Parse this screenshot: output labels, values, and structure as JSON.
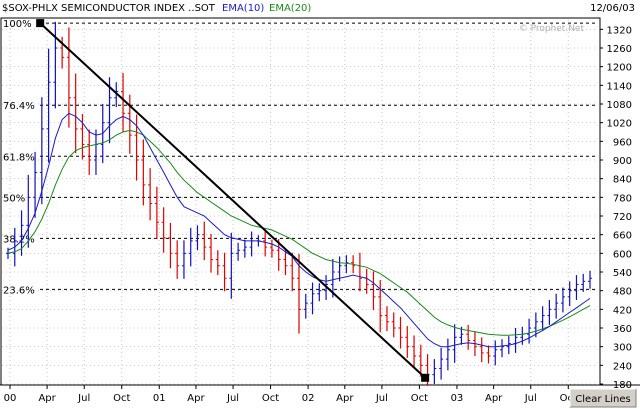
{
  "header": {
    "symbol_title": "$SOX-PHLX SEMICONDUCTOR INDEX ..SOT",
    "ema10_label": "EMA(10)",
    "ema20_label": "EMA(20)",
    "date": "12/06/03",
    "watermark": "© Prophet.Net"
  },
  "button": {
    "clear_lines": "Clear Lines"
  },
  "colors": {
    "background": "#ffffff",
    "grid": "#000000",
    "up_bar": "#1010c0",
    "down_bar": "#e00000",
    "ema10": "#1a1acc",
    "ema20": "#1a8a1a",
    "trendline": "#000000",
    "fib_line": "#000000"
  },
  "chart_data": {
    "type": "line",
    "title": "$SOX-PHLX SEMICONDUCTOR INDEX ..SOT",
    "x_tick_labels": [
      "00",
      "Apr",
      "Jul",
      "Oct",
      "01",
      "Apr",
      "Jul",
      "Oct",
      "02",
      "Apr",
      "Jul",
      "Oct",
      "03",
      "Apr",
      "Jul",
      "Oct"
    ],
    "y_tick_labels": [
      "180",
      "240",
      "300",
      "360",
      "420",
      "480",
      "540",
      "600",
      "660",
      "720",
      "780",
      "840",
      "900",
      "960",
      "1020",
      "1080",
      "1140",
      "1200",
      "1260",
      "1320"
    ],
    "ylim": [
      180,
      1350
    ],
    "y_scale": "linear",
    "date_range": [
      "2000-01",
      "2003-12"
    ],
    "fibonacci_levels": [
      {
        "label": "100%",
        "value": 1340
      },
      {
        "label": "76.4%",
        "value": 1076
      },
      {
        "label": "61.8%",
        "value": 912
      },
      {
        "label": "50%",
        "value": 780
      },
      {
        "label": "38.2%",
        "value": 648
      },
      {
        "label": "23.6%",
        "value": 484
      }
    ],
    "trendline": [
      {
        "date": "2000-03",
        "value": 1340
      },
      {
        "date": "2002-10",
        "value": 200
      }
    ],
    "closes": [
      600,
      640,
      690,
      780,
      860,
      1000,
      1150,
      1260,
      1230,
      1100,
      1000,
      950,
      900,
      950,
      1020,
      1100,
      1120,
      1050,
      980,
      900,
      820,
      760,
      700,
      650,
      600,
      560,
      600,
      640,
      660,
      620,
      580,
      560,
      520,
      600,
      610,
      620,
      640,
      640,
      620,
      610,
      580,
      560,
      520,
      420,
      440,
      470,
      480,
      500,
      540,
      560,
      570,
      560,
      520,
      500,
      460,
      400,
      380,
      360,
      330,
      300,
      270,
      240,
      210,
      230,
      260,
      290,
      330,
      340,
      320,
      300,
      280,
      270,
      290,
      300,
      310,
      330,
      340,
      360,
      380,
      400,
      420,
      440,
      460,
      480,
      500,
      510,
      520
    ],
    "series": [
      {
        "name": "EMA(10)",
        "values": [
          610,
          620,
          640,
          680,
          730,
          800,
          880,
          970,
          1030,
          1050,
          1040,
          1020,
          990,
          980,
          985,
          1010,
          1030,
          1040,
          1030,
          1010,
          980,
          940,
          900,
          860,
          820,
          780,
          750,
          740,
          730,
          720,
          700,
          680,
          660,
          650,
          645,
          640,
          640,
          640,
          635,
          630,
          620,
          605,
          590,
          560,
          540,
          525,
          515,
          510,
          515,
          520,
          525,
          530,
          525,
          520,
          505,
          485,
          465,
          445,
          425,
          400,
          375,
          350,
          325,
          310,
          300,
          300,
          305,
          310,
          312,
          310,
          305,
          300,
          300,
          302,
          305,
          310,
          318,
          328,
          340,
          352,
          365,
          380,
          395,
          410,
          425,
          440,
          455
        ]
      },
      {
        "name": "EMA(20)",
        "values": [
          600,
          605,
          615,
          640,
          670,
          710,
          760,
          820,
          870,
          910,
          930,
          940,
          945,
          950,
          955,
          965,
          980,
          990,
          995,
          990,
          980,
          960,
          940,
          915,
          890,
          860,
          835,
          815,
          795,
          780,
          765,
          750,
          735,
          720,
          710,
          700,
          690,
          685,
          680,
          675,
          665,
          655,
          645,
          630,
          615,
          600,
          590,
          580,
          575,
          570,
          568,
          565,
          560,
          555,
          545,
          535,
          520,
          505,
          490,
          475,
          455,
          435,
          415,
          395,
          380,
          370,
          362,
          356,
          352,
          348,
          344,
          340,
          338,
          337,
          337,
          338,
          340,
          344,
          350,
          357,
          365,
          375,
          385,
          396,
          408,
          420,
          432
        ]
      }
    ]
  }
}
